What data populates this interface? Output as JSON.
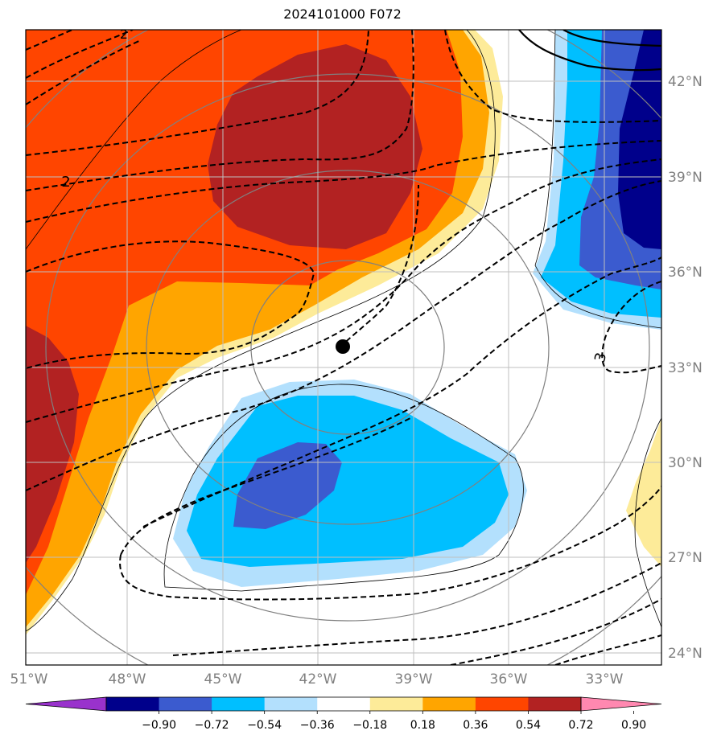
{
  "title": "2024101000 F072",
  "map": {
    "lat_labels": [
      "42°N",
      "39°N",
      "36°N",
      "33°N",
      "30°N",
      "27°N",
      "24°N"
    ],
    "lon_labels": [
      "51°W",
      "48°W",
      "45°W",
      "42°W",
      "39°W",
      "36°W",
      "33°W"
    ],
    "contour_labels": [
      "2",
      "2",
      "3"
    ],
    "grid_color": "#bfbfbf",
    "tick_label_color": "#808080",
    "storm_marker": "filled-circle"
  },
  "colorbar": {
    "ticks": [
      "−0.90",
      "−0.72",
      "−0.54",
      "−0.36",
      "−0.18",
      "0.18",
      "0.36",
      "0.54",
      "0.72",
      "0.90"
    ],
    "colors": [
      "#9932cc",
      "#00008b",
      "#3b5bcf",
      "#00bfff",
      "#b3e0fd",
      "#ffffff",
      "#fdeb99",
      "#ffa500",
      "#ff4500",
      "#b22222",
      "#ff88b0"
    ]
  }
}
